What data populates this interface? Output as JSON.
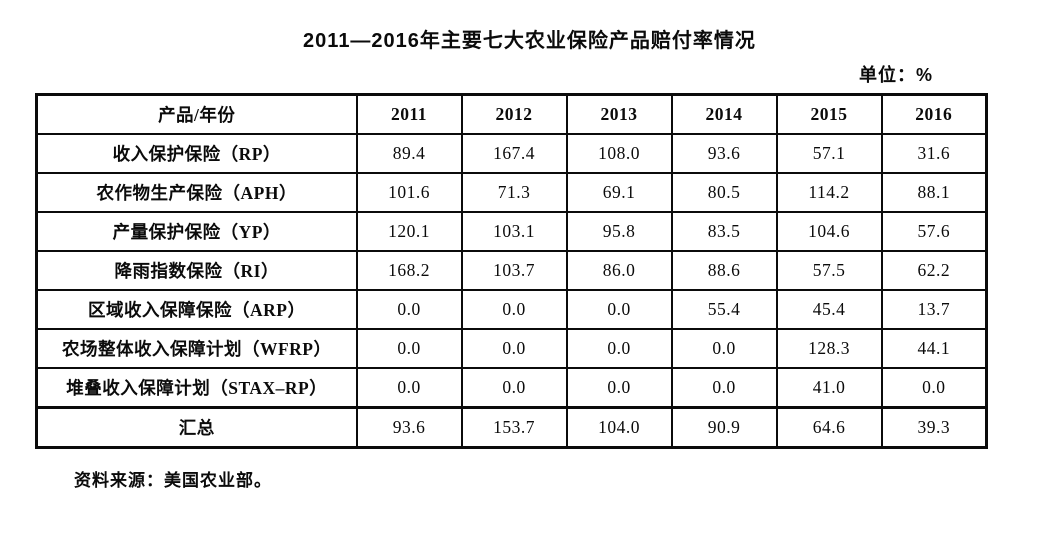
{
  "title": "2011—2016年主要七大农业保险产品赔付率情况",
  "unit_label": "单位：%",
  "source_note": "资料来源：美国农业部。",
  "colors": {
    "text": "#0b0b0b",
    "background": "#ffffff",
    "border": "#0b0b0b"
  },
  "chart_data": {
    "type": "table",
    "title": "2011—2016年主要七大农业保险产品赔付率情况",
    "unit": "%",
    "columns": [
      "产品/年份",
      "2011",
      "2012",
      "2013",
      "2014",
      "2015",
      "2016"
    ],
    "rows": [
      {
        "label": "收入保护保险（RP）",
        "values": [
          "89.4",
          "167.4",
          "108.0",
          "93.6",
          "57.1",
          "31.6"
        ]
      },
      {
        "label": "农作物生产保险（APH）",
        "values": [
          "101.6",
          "71.3",
          "69.1",
          "80.5",
          "114.2",
          "88.1"
        ]
      },
      {
        "label": "产量保护保险（YP）",
        "values": [
          "120.1",
          "103.1",
          "95.8",
          "83.5",
          "104.6",
          "57.6"
        ]
      },
      {
        "label": "降雨指数保险（RI）",
        "values": [
          "168.2",
          "103.7",
          "86.0",
          "88.6",
          "57.5",
          "62.2"
        ]
      },
      {
        "label": "区域收入保障保险（ARP）",
        "values": [
          "0.0",
          "0.0",
          "0.0",
          "55.4",
          "45.4",
          "13.7"
        ]
      },
      {
        "label": "农场整体收入保障计划（WFRP）",
        "values": [
          "0.0",
          "0.0",
          "0.0",
          "0.0",
          "128.3",
          "44.1"
        ]
      },
      {
        "label": "堆叠收入保障计划（STAX–RP）",
        "values": [
          "0.0",
          "0.0",
          "0.0",
          "0.0",
          "41.0",
          "0.0"
        ]
      },
      {
        "label": "汇总",
        "values": [
          "93.6",
          "153.7",
          "104.0",
          "90.9",
          "64.6",
          "39.3"
        ],
        "is_total": true
      }
    ],
    "source": "资料来源：美国农业部。"
  }
}
